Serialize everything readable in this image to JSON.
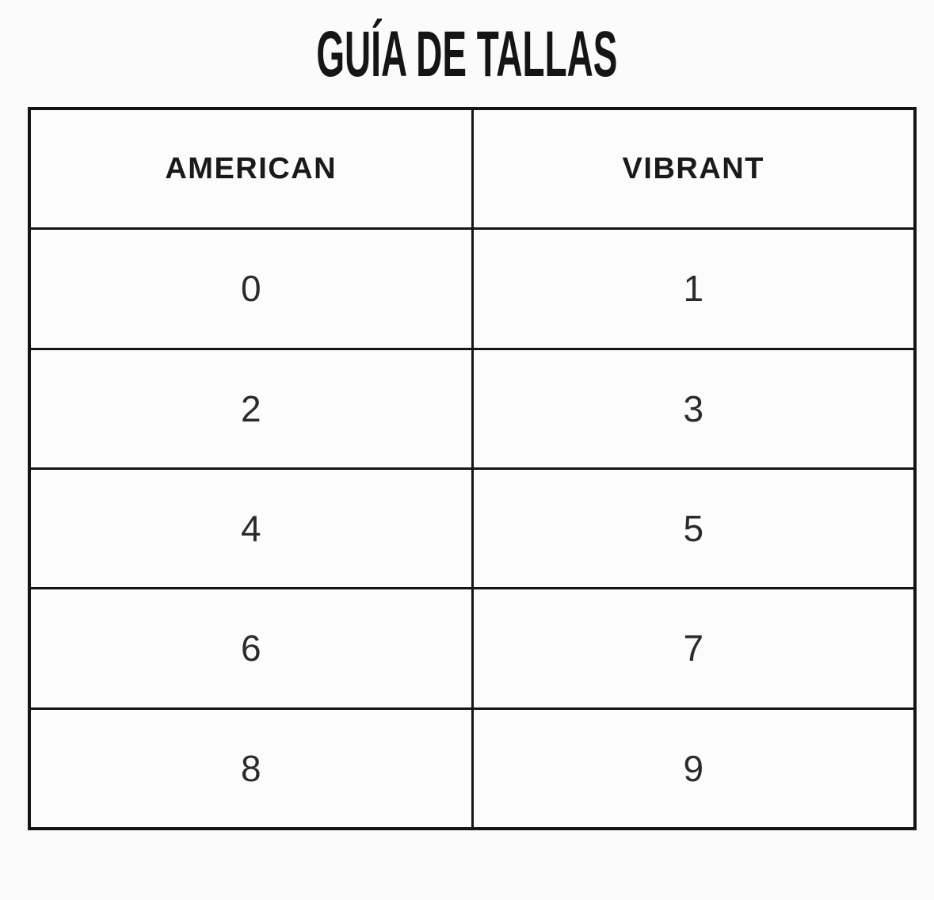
{
  "title": "GUÍA DE TALLAS",
  "chart_data": {
    "type": "table",
    "title": "GUÍA DE TALLAS",
    "columns": [
      "AMERICAN",
      "VIBRANT"
    ],
    "rows": [
      [
        "0",
        "1"
      ],
      [
        "2",
        "3"
      ],
      [
        "4",
        "5"
      ],
      [
        "6",
        "7"
      ],
      [
        "8",
        "9"
      ]
    ]
  },
  "colors": {
    "background": "#fbfbfb",
    "border": "#151515",
    "heading_text": "#1a1a1a",
    "cell_text": "#2b2b2b"
  }
}
